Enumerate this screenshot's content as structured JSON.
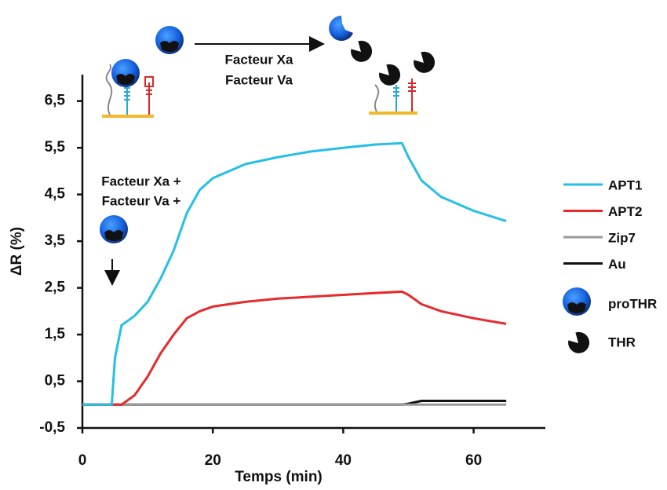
{
  "chart_data": {
    "type": "line",
    "x_label": "Temps (min)",
    "y_label": "ΔR (%)",
    "x": [
      0,
      4.5,
      5,
      6,
      8,
      10,
      12,
      14,
      16,
      18,
      20,
      25,
      30,
      35,
      40,
      45,
      49,
      50,
      52,
      55,
      60,
      65
    ],
    "series": [
      {
        "name": "APT1",
        "color": "#25bfe6",
        "values": [
          0,
          0,
          1.0,
          1.7,
          1.9,
          2.2,
          2.7,
          3.3,
          4.1,
          4.6,
          4.85,
          5.15,
          5.3,
          5.42,
          5.5,
          5.57,
          5.6,
          5.3,
          4.8,
          4.45,
          4.15,
          3.93
        ]
      },
      {
        "name": "APT2",
        "color": "#e52b2b",
        "values": [
          0,
          0,
          0,
          0,
          0.2,
          0.6,
          1.1,
          1.5,
          1.85,
          2.0,
          2.1,
          2.2,
          2.27,
          2.31,
          2.35,
          2.39,
          2.42,
          2.35,
          2.15,
          2.0,
          1.85,
          1.73
        ]
      },
      {
        "name": "Zip7",
        "color": "#999999",
        "values": [
          0,
          0,
          0,
          0,
          0,
          0,
          0,
          0,
          0,
          0,
          0,
          0,
          0,
          0,
          0,
          0,
          0,
          0,
          0,
          0,
          0,
          0
        ]
      },
      {
        "name": "Au",
        "color": "#111111",
        "values": [
          0,
          0,
          0,
          0,
          0,
          0,
          0,
          0,
          0,
          0,
          0,
          0,
          0,
          0,
          0,
          0,
          0,
          0.02,
          0.08,
          0.08,
          0.08,
          0.08
        ]
      }
    ],
    "icon_labels": [
      "proTHR",
      "THR"
    ],
    "annotations": [
      "Facteur Xa",
      "Facteur Va",
      "Facteur Xa +",
      "Facteur Va +"
    ],
    "xlim": [
      0,
      71
    ],
    "xticks": [
      0,
      20,
      40,
      60
    ],
    "ylim": [
      -0.5,
      7
    ],
    "yticks": [
      {
        "value": -0.5,
        "label": "-0,5"
      },
      {
        "value": 0.5,
        "label": "0,5"
      },
      {
        "value": 1.5,
        "label": "1,5"
      },
      {
        "value": 2.5,
        "label": "2,5"
      },
      {
        "value": 3.5,
        "label": "3,5"
      },
      {
        "value": 4.5,
        "label": "4,5"
      },
      {
        "value": 5.5,
        "label": "5,5"
      },
      {
        "value": 6.5,
        "label": "6,5"
      }
    ]
  }
}
